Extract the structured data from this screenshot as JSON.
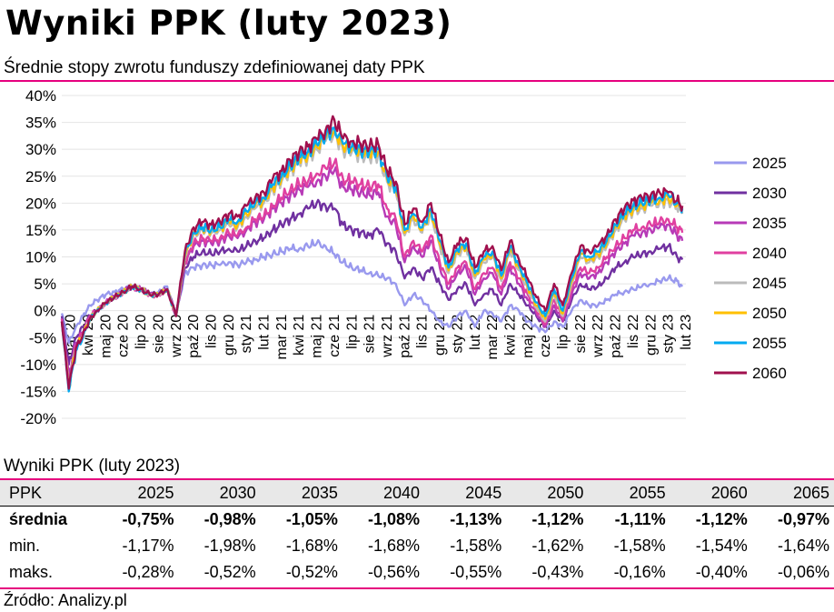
{
  "header": {
    "title": "Wyniki PPK (luty 2023)",
    "subtitle": "Średnie stopy zwrotu funduszy zdefiniowanej daty PPK"
  },
  "chart_data": {
    "type": "line",
    "ylim": [
      -20,
      40
    ],
    "y_ticks": [
      "40%",
      "35%",
      "30%",
      "25%",
      "20%",
      "15%",
      "10%",
      "5%",
      "0%",
      "-5%",
      "-10%",
      "-15%",
      "-20%"
    ],
    "x_labels": [
      "mar 20",
      "kwi 20",
      "maj 20",
      "cze 20",
      "lip 20",
      "sie 20",
      "wrz 20",
      "paź 20",
      "lis 20",
      "gru 20",
      "sty 21",
      "lut 21",
      "mar 21",
      "kwi 21",
      "maj 21",
      "cze 21",
      "lip 21",
      "sie 21",
      "wrz 21",
      "paź 21",
      "lis 21",
      "gru 21",
      "sty 22",
      "lut 22",
      "mar 22",
      "kwi 22",
      "maj 22",
      "cze 22",
      "lip 22",
      "sie 22",
      "wrz 22",
      "paź 22",
      "lis 22",
      "gru 22",
      "sty 23",
      "lut 23"
    ],
    "legend_position": "right",
    "x": [
      0,
      0.4,
      0.8,
      1.2,
      1.6,
      2.0,
      2.5,
      3,
      3.5,
      4,
      4.5,
      5,
      5.5,
      6,
      6.5,
      7,
      7.5,
      8,
      8.5,
      9,
      9.5,
      10,
      10.5,
      11,
      11.5,
      12,
      12.5,
      13,
      13.5,
      14,
      14.5,
      15,
      15.5,
      16,
      16.5,
      17,
      17.5,
      18,
      18.5,
      19,
      19.5,
      20,
      20.5,
      21,
      21.5,
      22,
      22.5,
      23,
      23.5,
      24,
      24.5,
      25,
      25.5,
      26,
      26.5,
      27,
      27.5,
      28,
      28.5,
      29,
      29.5,
      30,
      30.5,
      31,
      31.5,
      32,
      32.5,
      33,
      33.5,
      34,
      34.5,
      35,
      35.3
    ],
    "series": [
      {
        "name": "2025",
        "color": "#9999ee",
        "values": [
          -0.5,
          -6,
          -3,
          -1,
          1,
          2,
          3,
          3.5,
          4,
          4.5,
          4,
          3,
          3.5,
          4.5,
          -1,
          7,
          8,
          8.5,
          8.5,
          8.5,
          9,
          8.5,
          9,
          9.5,
          10,
          10.5,
          11,
          11.5,
          11.5,
          12,
          12.5,
          12,
          10.5,
          9,
          8,
          7.5,
          7,
          6.5,
          6,
          5,
          1,
          3,
          2,
          0,
          -2,
          -3,
          -1,
          0,
          -3,
          0,
          -0.5,
          -2,
          1,
          0,
          -2,
          -3,
          -4,
          -2,
          -3,
          0,
          2,
          1,
          1,
          2,
          3,
          3.5,
          4,
          4.5,
          5,
          5.5,
          6,
          5.5,
          4.5
        ]
      },
      {
        "name": "2030",
        "color": "#7030a0",
        "values": [
          -1,
          -10,
          -5,
          -3,
          -1,
          0,
          1.5,
          2.5,
          3.5,
          4.5,
          4,
          3,
          3,
          4,
          -1,
          8,
          10,
          11,
          10.5,
          11,
          11.5,
          11,
          12,
          13,
          13.5,
          15,
          16,
          17,
          18,
          19,
          20,
          19.5,
          19,
          16,
          15,
          14.5,
          14,
          15,
          12.5,
          11,
          6,
          8,
          6,
          8,
          5,
          2,
          4,
          5,
          1,
          3,
          4,
          1,
          5,
          3,
          1,
          -1,
          -3,
          0,
          -2,
          2,
          5,
          4,
          4.5,
          6,
          8,
          9,
          10,
          10.5,
          11,
          11.5,
          12,
          10,
          9.5
        ]
      },
      {
        "name": "2035",
        "color": "#b73ab7",
        "values": [
          -1.5,
          -12,
          -6,
          -4,
          -1,
          0,
          1.5,
          2.5,
          3.5,
          4.5,
          4,
          3,
          3,
          4,
          -1,
          9,
          12,
          13,
          12.5,
          13,
          14,
          13.5,
          15,
          16.5,
          17,
          19,
          20,
          21.5,
          22.5,
          23,
          24,
          25,
          26,
          23,
          22.5,
          22,
          21.5,
          22,
          17.5,
          16,
          9,
          12,
          10,
          13,
          8,
          4,
          7,
          8,
          3,
          6,
          7,
          3,
          8,
          5,
          2,
          -0.5,
          -3,
          1,
          -2,
          3,
          7,
          6,
          7,
          9,
          11,
          12.5,
          14,
          14.5,
          15,
          15.5,
          16,
          14,
          13
        ]
      },
      {
        "name": "2040",
        "color": "#e040a0",
        "values": [
          -1.5,
          -13,
          -6.5,
          -4,
          -1,
          0,
          1.5,
          2.5,
          3.5,
          4.5,
          4,
          3,
          3,
          4,
          -1,
          9,
          12.5,
          13.5,
          13,
          13.5,
          14.5,
          14,
          15.5,
          17,
          17.5,
          19.5,
          21,
          22.5,
          23.5,
          24,
          25.5,
          26.5,
          27.5,
          24.5,
          24,
          23.5,
          23,
          23.5,
          19,
          17,
          10,
          13,
          11,
          14,
          9,
          5,
          8,
          9,
          4,
          7,
          8,
          4,
          9,
          6,
          3,
          0,
          -2.5,
          2,
          -1.5,
          4,
          8,
          7,
          8,
          10,
          12,
          13.5,
          15,
          15.5,
          16,
          16.5,
          17,
          15.5,
          14.5
        ]
      },
      {
        "name": "2045",
        "color": "#bbbbbb",
        "values": [
          -2,
          -14,
          -7,
          -4.5,
          -1.5,
          0,
          1.5,
          2.5,
          3.5,
          4.5,
          4,
          3,
          3,
          4,
          -1,
          10,
          14,
          15,
          14.5,
          15,
          16,
          15.5,
          17.5,
          19,
          20,
          22.5,
          24,
          26,
          27.5,
          28.5,
          30,
          31.5,
          33,
          30,
          29.5,
          29,
          28.5,
          29,
          24,
          22,
          14,
          17,
          14.5,
          18,
          12,
          7,
          10.5,
          11.5,
          6,
          9,
          10,
          5.5,
          11,
          7.5,
          4,
          0.5,
          -2,
          3,
          -1,
          5,
          10,
          9,
          10,
          12,
          15,
          17,
          18.5,
          19,
          19.5,
          20,
          20.5,
          19,
          18
        ]
      },
      {
        "name": "2050",
        "color": "#ffc000",
        "values": [
          -2,
          -14.5,
          -7,
          -4.5,
          -1.5,
          0,
          1.5,
          2.5,
          3.5,
          4.5,
          4,
          3,
          3,
          4,
          -1,
          10,
          14.5,
          15.5,
          15,
          15.5,
          16.5,
          16,
          18,
          19.5,
          20.5,
          23,
          24.5,
          26.5,
          28,
          29,
          30.5,
          32,
          33.5,
          30.5,
          30,
          29.5,
          29,
          29.5,
          24.5,
          22.5,
          14.5,
          17.5,
          15,
          18.5,
          12.5,
          7.5,
          11,
          12,
          6.5,
          9.5,
          10.5,
          6,
          11.5,
          8,
          4.5,
          1,
          -1.5,
          3.5,
          -0.5,
          5.5,
          10.5,
          9.5,
          10.5,
          12.5,
          15.5,
          17.5,
          19,
          19.5,
          20,
          20.5,
          21,
          19.5,
          18.5
        ]
      },
      {
        "name": "2055",
        "color": "#00aaf0",
        "values": [
          -2,
          -15,
          -7.5,
          -5,
          -1.5,
          0,
          1.5,
          2.5,
          3.5,
          4.5,
          4,
          3,
          3,
          4,
          -1,
          10.5,
          14.5,
          15.5,
          15,
          15.5,
          17,
          16.5,
          18.5,
          20,
          21,
          23.5,
          25,
          27,
          28.5,
          29.5,
          31,
          32.5,
          34,
          31,
          30.5,
          30,
          29.5,
          30,
          25,
          23,
          15,
          18,
          15.5,
          19,
          13,
          8,
          11.5,
          12.5,
          7,
          10,
          11,
          6.5,
          12,
          8.5,
          5,
          1.5,
          -1,
          4,
          0,
          6,
          11,
          10,
          11,
          13,
          16,
          18,
          19.5,
          20,
          20.5,
          21,
          21.5,
          20,
          19
        ]
      },
      {
        "name": "2060",
        "color": "#a0104e",
        "values": [
          -2,
          -14.5,
          -7,
          -4.5,
          -1.5,
          0,
          1.5,
          2.5,
          3.5,
          4.5,
          4,
          3,
          3,
          4,
          -1,
          11,
          15.5,
          16.5,
          16,
          16.5,
          18,
          17.5,
          19.5,
          21,
          22,
          24.5,
          26,
          28,
          29.5,
          30.5,
          32,
          33.5,
          35.5,
          32,
          31.5,
          31,
          30.5,
          31,
          26,
          24,
          16,
          19,
          16.5,
          20,
          14,
          9,
          12.5,
          13.5,
          8,
          11,
          12,
          7.5,
          13,
          9.5,
          6,
          2.5,
          0,
          5,
          1,
          7,
          12,
          11,
          12,
          14,
          17,
          19,
          20.5,
          21,
          21.5,
          22,
          22,
          20.5,
          19.5
        ]
      }
    ]
  },
  "table": {
    "title": "Wyniki PPK (luty 2023)",
    "header": [
      "PPK",
      "2025",
      "2030",
      "2035",
      "2040",
      "2045",
      "2050",
      "2055",
      "2060",
      "2065"
    ],
    "rows": [
      {
        "label": "średnia",
        "values": [
          "-0,75%",
          "-0,98%",
          "-1,05%",
          "-1,08%",
          "-1,13%",
          "-1,12%",
          "-1,11%",
          "-1,12%",
          "-0,97%"
        ]
      },
      {
        "label": "min.",
        "values": [
          "-1,17%",
          "-1,98%",
          "-1,68%",
          "-1,68%",
          "-1,58%",
          "-1,62%",
          "-1,58%",
          "-1,54%",
          "-1,64%"
        ]
      },
      {
        "label": "maks.",
        "values": [
          "-0,28%",
          "-0,52%",
          "-0,52%",
          "-0,56%",
          "-0,55%",
          "-0,43%",
          "-0,16%",
          "-0,40%",
          "-0,06%"
        ]
      }
    ]
  },
  "footer": {
    "source": "Źródło: Analizy.pl"
  },
  "colors": {
    "accent_rule": "#e6007e"
  }
}
